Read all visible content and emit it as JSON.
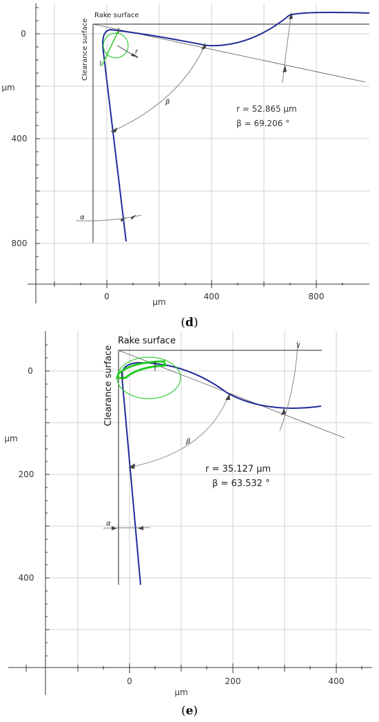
{
  "panel_d": {
    "caption_open": "(",
    "caption_letter": "d",
    "caption_close": ")",
    "y_ticks": [
      "0",
      "400",
      "800"
    ],
    "x_ticks": [
      "0",
      "400",
      "800"
    ],
    "y_unit": "µm",
    "x_unit": "µm",
    "rake_label": "Rake surface",
    "clearance_label": "Clearance surface",
    "r_text": "r = 52.865 µm",
    "beta_text": "β = 69.206 °",
    "beta_symbol": "β",
    "alpha_symbol": "α",
    "gamma_symbol": "γ",
    "r_symbol": "r"
  },
  "panel_e": {
    "caption_open": "(",
    "caption_letter": "e",
    "caption_close": ")",
    "y_ticks": [
      "0",
      "200",
      "400"
    ],
    "x_ticks": [
      "0",
      "200",
      "400"
    ],
    "y_unit": "µm",
    "x_unit": "µm",
    "rake_label": "Rake surface",
    "clearance_label": "Clearance surface",
    "r_text": "r = 35.127 µm",
    "beta_text": "β = 63.532 °",
    "beta_symbol": "β",
    "alpha_symbol": "α",
    "gamma_symbol": "γ"
  },
  "colors": {
    "profile": "#1f2a9a",
    "radius_fit": "#33cc33",
    "grid": "#cfcfcf"
  }
}
